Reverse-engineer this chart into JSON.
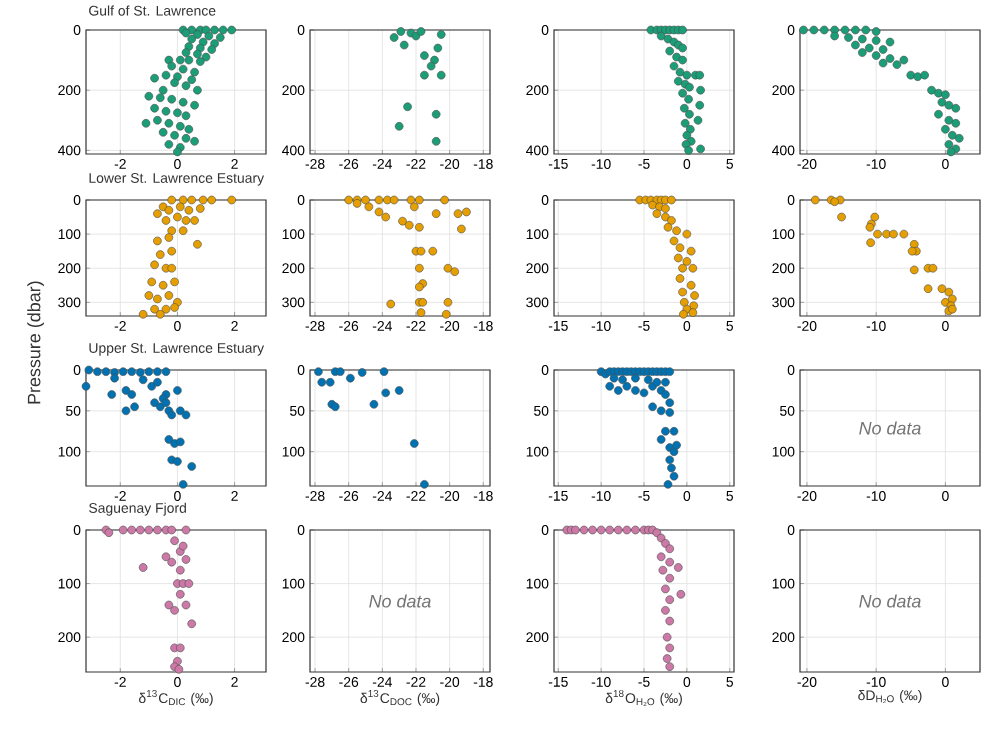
{
  "chart_data": [
    {
      "type": "scatter",
      "title": "Gulf of St. Lawrence",
      "color": "#1b9e77",
      "marker": "circle",
      "grid": true,
      "xlim": [
        -3.2,
        3.1
      ],
      "xticks": [
        -2,
        0,
        2
      ],
      "ylim": [
        412,
        0
      ],
      "yticks": [
        0,
        200,
        400
      ],
      "x": [
        0.2,
        0.5,
        0.8,
        1.0,
        1.3,
        1.6,
        1.9,
        0.3,
        0.7,
        1.1,
        1.5,
        0.5,
        0.9,
        1.3,
        0.4,
        0.8,
        1.2,
        0.3,
        0.7,
        1.0,
        -0.3,
        0.1,
        0.4,
        0.8,
        -0.2,
        0.2,
        0.6,
        -0.4,
        0,
        0.5,
        -0.8,
        -0.1,
        0.3,
        0.7,
        -0.5,
        -1.0,
        -0.6,
        -0.2,
        0.2,
        0.6,
        -0.8,
        -0.4,
        0,
        0.3,
        -1.1,
        -0.7,
        -0.3,
        0.1,
        0.4,
        -0.5,
        -0.1,
        0.3,
        0.6,
        -0.3,
        0.1,
        0
      ],
      "values": [
        0,
        0,
        0,
        0,
        0,
        0,
        0,
        10,
        15,
        20,
        25,
        30,
        40,
        45,
        55,
        60,
        65,
        75,
        80,
        90,
        100,
        100,
        100,
        105,
        120,
        130,
        140,
        150,
        155,
        165,
        160,
        175,
        185,
        200,
        200,
        220,
        225,
        230,
        240,
        250,
        260,
        270,
        275,
        285,
        310,
        300,
        310,
        320,
        330,
        340,
        350,
        360,
        370,
        380,
        390,
        405
      ]
    },
    {
      "type": "scatter",
      "color": "#1b9e77",
      "marker": "circle",
      "grid": true,
      "xlim": [
        -28.3,
        -17.6
      ],
      "xticks": [
        -28,
        -26,
        -24,
        -22,
        -20,
        -18
      ],
      "ylim": [
        412,
        0
      ],
      "yticks": [
        0,
        200,
        400
      ],
      "x": [
        -23.3,
        -22.9,
        -22.7,
        -22.3,
        -22,
        -21.7,
        -20.5,
        -20.7,
        -21.5,
        -20.9,
        -21.1,
        -21.5,
        -20.5,
        -22.5,
        -20.8,
        -23,
        -20.8
      ],
      "values": [
        25,
        5,
        50,
        10,
        20,
        5,
        15,
        60,
        85,
        100,
        120,
        150,
        150,
        255,
        280,
        320,
        370
      ]
    },
    {
      "type": "scatter",
      "color": "#1b9e77",
      "marker": "circle",
      "grid": true,
      "xlim": [
        -15.5,
        5.5
      ],
      "xticks": [
        -15,
        -10,
        -5,
        0,
        5
      ],
      "ylim": [
        412,
        0
      ],
      "yticks": [
        0,
        200,
        400
      ],
      "x": [
        -4.2,
        -3.5,
        -3,
        -2.5,
        -2,
        -1.5,
        -1,
        -0.5,
        -3,
        -2.2,
        -1.5,
        -1,
        -0.5,
        -2,
        -1.2,
        -0.5,
        -1.5,
        -0.8,
        0,
        1,
        1.5,
        -1,
        -0.2,
        0.3,
        1.6,
        -0.5,
        0.2,
        1.5,
        -0.3,
        0.3,
        1.3,
        -0.2,
        0.4,
        0,
        0.5,
        -0.1,
        1.6,
        0.2
      ],
      "values": [
        0,
        0,
        0,
        0,
        0,
        0,
        0,
        0,
        20,
        30,
        40,
        50,
        60,
        70,
        90,
        100,
        120,
        140,
        150,
        150,
        150,
        170,
        180,
        190,
        200,
        210,
        230,
        250,
        260,
        280,
        300,
        310,
        330,
        350,
        370,
        380,
        395,
        400
      ]
    },
    {
      "type": "scatter",
      "color": "#1b9e77",
      "marker": "circle",
      "grid": true,
      "xlim": [
        -21,
        5
      ],
      "xticks": [
        -20,
        -10,
        0
      ],
      "ylim": [
        412,
        0
      ],
      "yticks": [
        0,
        200,
        400
      ],
      "x": [
        -20.5,
        -19,
        -17.5,
        -16,
        -14.5,
        -13,
        -11.5,
        -10,
        -16,
        -14,
        -12,
        -10,
        -8,
        -13,
        -11,
        -9,
        -12,
        -10,
        -8,
        -6,
        -9,
        -7,
        -5,
        -4,
        -3,
        -2,
        -1,
        0,
        -0.5,
        0.5,
        1.5,
        -1,
        0.5,
        1.5,
        0,
        1,
        2,
        0.5,
        1.5,
        0.8
      ],
      "values": [
        0,
        0,
        0,
        0,
        0,
        0,
        0,
        5,
        20,
        25,
        30,
        35,
        40,
        50,
        60,
        65,
        75,
        85,
        95,
        100,
        110,
        115,
        150,
        155,
        150,
        200,
        210,
        215,
        240,
        250,
        260,
        280,
        300,
        310,
        330,
        350,
        360,
        380,
        395,
        405
      ]
    },
    {
      "type": "scatter",
      "title": "Lower St. Lawrence Estuary",
      "ylabel": "Pressure (dbar)",
      "color": "#e69f00",
      "marker": "circle",
      "grid": true,
      "xlim": [
        -3.2,
        3.1
      ],
      "xticks": [
        -2,
        0,
        2
      ],
      "ylim": [
        340,
        0
      ],
      "yticks": [
        0,
        100,
        200,
        300
      ],
      "x": [
        -0.7,
        -0.5,
        -0.2,
        0.2,
        0.5,
        0.9,
        1.2,
        1.9,
        -0.3,
        0.1,
        0.4,
        0.8,
        -0.4,
        0,
        0.3,
        0.6,
        -0.2,
        0.2,
        0.7,
        -0.7,
        -0.3,
        -0.6,
        -0.2,
        -0.8,
        -0.4,
        -0.2,
        -0.9,
        -0.5,
        -0.1,
        -1.0,
        -0.7,
        -0.3,
        0,
        -1.2,
        -0.8,
        -0.4,
        -0.1,
        -0.6
      ],
      "values": [
        40,
        20,
        0,
        0,
        0,
        0,
        0,
        0,
        30,
        20,
        30,
        25,
        60,
        50,
        60,
        60,
        90,
        90,
        130,
        120,
        110,
        160,
        150,
        190,
        200,
        200,
        240,
        250,
        240,
        280,
        290,
        280,
        300,
        335,
        320,
        320,
        315,
        335
      ]
    },
    {
      "type": "scatter",
      "color": "#e69f00",
      "marker": "circle",
      "grid": true,
      "xlim": [
        -28.3,
        -17.6
      ],
      "xticks": [
        -28,
        -26,
        -24,
        -22,
        -20,
        -18
      ],
      "ylim": [
        340,
        0
      ],
      "yticks": [
        0,
        100,
        200,
        300
      ],
      "x": [
        -26,
        -25.5,
        -25,
        -24.2,
        -23.7,
        -23.3,
        -22.3,
        -21.8,
        -20.3,
        -25.5,
        -24.8,
        -24.2,
        -23.8,
        -22.1,
        -22.8,
        -22.4,
        -21.8,
        -20.8,
        -19.5,
        -19.0,
        -19.3,
        -22.0,
        -21.7,
        -21.0,
        -21.8,
        -20.1,
        -19.7,
        -21.6,
        -21.8,
        -23.5,
        -21.8,
        -21.6,
        -20.1,
        -21.7,
        -20.2
      ],
      "values": [
        0,
        0,
        0,
        0,
        0,
        0,
        0,
        0,
        0,
        10,
        20,
        35,
        50,
        20,
        62,
        74,
        80,
        40,
        40,
        35,
        85,
        150,
        150,
        150,
        200,
        200,
        210,
        245,
        255,
        305,
        300,
        300,
        300,
        330,
        335
      ]
    },
    {
      "type": "scatter",
      "color": "#e69f00",
      "marker": "circle",
      "grid": true,
      "xlim": [
        -15.5,
        5.5
      ],
      "xticks": [
        -15,
        -10,
        -5,
        0,
        5
      ],
      "ylim": [
        340,
        0
      ],
      "yticks": [
        0,
        100,
        200,
        300
      ],
      "x": [
        -5.5,
        -4.8,
        -4.2,
        -3.5,
        -3,
        -2.5,
        -1.8,
        -4,
        -3.2,
        -2.5,
        -3.5,
        -2.5,
        -1.8,
        -2.2,
        -1.2,
        0,
        -1.5,
        -0.8,
        0.5,
        -1,
        0,
        -0.5,
        0.7,
        -0.8,
        0.5,
        -0.5,
        0.9,
        -0.3,
        0.8,
        0,
        0.7,
        -0.4
      ],
      "values": [
        0,
        0,
        0,
        0,
        0,
        0,
        0,
        15,
        20,
        25,
        40,
        50,
        60,
        80,
        90,
        100,
        120,
        140,
        150,
        170,
        180,
        200,
        200,
        230,
        250,
        270,
        280,
        300,
        310,
        320,
        330,
        335
      ]
    },
    {
      "type": "scatter",
      "color": "#e69f00",
      "marker": "circle",
      "grid": true,
      "xlim": [
        -21,
        5
      ],
      "xticks": [
        -20,
        -10,
        0
      ],
      "ylim": [
        340,
        0
      ],
      "yticks": [
        0,
        100,
        200,
        300
      ],
      "x": [
        -18.8,
        -16.5,
        -15.2,
        -16,
        -15,
        -10.7,
        -10.9,
        -10.2,
        -10.8,
        -9.8,
        -8.5,
        -7.5,
        -6,
        -4.5,
        -4.2,
        -4.8,
        -4.5,
        -2.5,
        -1.8,
        -2.5,
        -0.5,
        0.5,
        0,
        1,
        0.8,
        0.5,
        1
      ],
      "values": [
        0,
        0,
        0,
        5,
        50,
        70,
        80,
        50,
        125,
        100,
        100,
        100,
        100,
        130,
        150,
        150,
        205,
        200,
        200,
        260,
        260,
        270,
        300,
        290,
        310,
        325,
        320
      ]
    },
    {
      "type": "scatter",
      "title": "Upper St. Lawrence Estuary",
      "color": "#0072b2",
      "marker": "circle",
      "grid": true,
      "xlim": [
        -3.2,
        3.1
      ],
      "xticks": [
        -2,
        0,
        2
      ],
      "ylim": [
        142,
        0
      ],
      "yticks": [
        0,
        50,
        100
      ],
      "x": [
        -3.1,
        -2.8,
        -2.5,
        -2.2,
        -1.9,
        -1.6,
        -1.3,
        -1,
        -0.7,
        -0.4,
        -3.2,
        -2.2,
        -2.3,
        -1.8,
        -1.6,
        -1.8,
        -1.5,
        -1.2,
        -0.9,
        -0.8,
        -0.6,
        -0.4,
        -0.3,
        -0.5,
        -0.2,
        0,
        0.1,
        0.3,
        -0.3,
        -0.1,
        0.1,
        -0.2,
        0,
        0.5,
        0.2,
        -0.4,
        -0.7
      ],
      "values": [
        0,
        2,
        2,
        3,
        2,
        2,
        3,
        2,
        2,
        2,
        20,
        10,
        30,
        25,
        30,
        50,
        45,
        12,
        20,
        40,
        45,
        30,
        50,
        35,
        55,
        25,
        50,
        55,
        85,
        90,
        88,
        110,
        112,
        118,
        140,
        40,
        15
      ]
    },
    {
      "type": "scatter",
      "color": "#0072b2",
      "marker": "circle",
      "grid": true,
      "xlim": [
        -28.3,
        -17.6
      ],
      "xticks": [
        -28,
        -26,
        -24,
        -22,
        -20,
        -18
      ],
      "ylim": [
        142,
        0
      ],
      "yticks": [
        0,
        50,
        100
      ],
      "x": [
        -27.8,
        -27.6,
        -27.1,
        -26.8,
        -26.5,
        -27,
        -26.8,
        -25.9,
        -25.2,
        -23.9,
        -23.8,
        -23,
        -24.5,
        -22.1,
        -21.5
      ],
      "values": [
        2,
        15,
        15,
        2,
        2,
        42,
        45,
        10,
        3,
        2,
        28,
        25,
        42,
        90,
        140
      ]
    },
    {
      "type": "scatter",
      "color": "#0072b2",
      "marker": "circle",
      "grid": true,
      "xlim": [
        -15.5,
        5.5
      ],
      "xticks": [
        -15,
        -10,
        -5,
        0,
        5
      ],
      "ylim": [
        142,
        0
      ],
      "yticks": [
        0,
        50,
        100
      ],
      "x": [
        -10,
        -9.5,
        -9,
        -8.5,
        -8,
        -7.5,
        -7,
        -6.5,
        -6,
        -5.5,
        -5,
        -4.5,
        -4,
        -3.5,
        -3,
        -2.5,
        -2,
        -9,
        -8,
        -7,
        -6,
        -5,
        -4,
        -3,
        -2.5,
        -2,
        -8.5,
        -7.5,
        -6,
        -4.5,
        -3.5,
        -2.5,
        -4,
        -3,
        -2,
        -2.5,
        -1.5,
        -3,
        -2,
        -1.5,
        -2,
        -1.8,
        -1.5,
        -2.2,
        -1.2
      ],
      "values": [
        2,
        5,
        2,
        2,
        2,
        2,
        2,
        2,
        2,
        2,
        2,
        2,
        2,
        2,
        2,
        2,
        2,
        20,
        25,
        20,
        25,
        28,
        20,
        25,
        30,
        40,
        10,
        12,
        10,
        12,
        15,
        15,
        45,
        50,
        52,
        75,
        75,
        85,
        95,
        100,
        110,
        120,
        130,
        140,
        92
      ]
    },
    {
      "type": "scatter",
      "grid": true,
      "xlim": [
        -21,
        5
      ],
      "xticks": [
        -20,
        -10,
        0
      ],
      "ylim": [
        142,
        0
      ],
      "yticks": [
        0,
        50,
        100
      ],
      "annotations": [
        "No data"
      ]
    },
    {
      "type": "scatter",
      "title": "Saguenay Fjord",
      "xlabel": "δ$^{13}$C$_{DIC}$ (‰)",
      "color": "#cc79a7",
      "marker": "circle",
      "grid": true,
      "xlim": [
        -3.2,
        3.1
      ],
      "xticks": [
        -2,
        0,
        2
      ],
      "ylim": [
        265,
        0
      ],
      "yticks": [
        0,
        100,
        200
      ],
      "x": [
        -2.5,
        -2.4,
        -1.9,
        -1.6,
        -1.3,
        -1,
        -0.7,
        -0.4,
        -0.2,
        0.3,
        -0.4,
        -0.2,
        -0.1,
        0.1,
        0.2,
        0.3,
        -1.2,
        0.1,
        0,
        0.2,
        0.4,
        0.1,
        -0.3,
        0.3,
        -0.1,
        0.5,
        -0.1,
        0.1,
        0,
        -0.1,
        0.05
      ],
      "values": [
        0,
        5,
        0,
        0,
        0,
        0,
        0,
        0,
        0,
        0,
        50,
        60,
        20,
        40,
        30,
        55,
        70,
        75,
        100,
        100,
        100,
        120,
        140,
        140,
        150,
        175,
        220,
        220,
        245,
        255,
        260
      ]
    },
    {
      "type": "scatter",
      "xlabel": "δ$^{13}$C$_{DOC}$ (‰)",
      "grid": true,
      "xlim": [
        -28.3,
        -17.6
      ],
      "xticks": [
        -28,
        -26,
        -24,
        -22,
        -20,
        -18
      ],
      "ylim": [
        265,
        0
      ],
      "yticks": [
        0,
        100,
        200
      ],
      "annotations": [
        "No data"
      ]
    },
    {
      "type": "scatter",
      "xlabel": "δ$^{18}$O$_{H₂O}$ (‰)",
      "color": "#cc79a7",
      "marker": "circle",
      "grid": true,
      "xlim": [
        -15.5,
        5.5
      ],
      "xticks": [
        -15,
        -10,
        -5,
        0,
        5
      ],
      "ylim": [
        265,
        0
      ],
      "yticks": [
        0,
        100,
        200
      ],
      "x": [
        -14,
        -13.5,
        -13,
        -12,
        -11,
        -10,
        -9,
        -8,
        -7,
        -6,
        -5,
        -4.5,
        -4,
        -3.5,
        -3,
        -2.5,
        -2,
        -3,
        -2,
        -1,
        -2.8,
        -2,
        -2.5,
        -0.7,
        -2,
        -2.5,
        -2,
        -2.3,
        -2,
        -2.3,
        -2
      ],
      "values": [
        0,
        0,
        0,
        0,
        0,
        0,
        0,
        0,
        0,
        0,
        0,
        0,
        0,
        5,
        15,
        25,
        35,
        50,
        60,
        70,
        75,
        90,
        110,
        120,
        130,
        150,
        170,
        200,
        220,
        240,
        255
      ]
    },
    {
      "type": "scatter",
      "xlabel": "δD$_{H₂O}$ (‰)",
      "grid": true,
      "xlim": [
        -21,
        5
      ],
      "xticks": [
        -20,
        -10,
        0
      ],
      "ylim": [
        265,
        0
      ],
      "yticks": [
        0,
        100,
        200
      ],
      "annotations": [
        "No data"
      ]
    }
  ]
}
